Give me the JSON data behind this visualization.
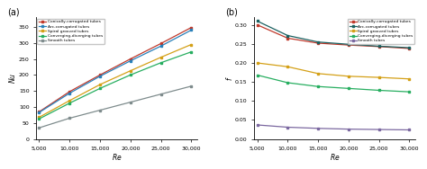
{
  "Re": [
    5000,
    10000,
    15000,
    20000,
    25000,
    30000
  ],
  "Nu": {
    "Conically-corrugated tubes": [
      85,
      148,
      200,
      250,
      298,
      348
    ],
    "Arc-corrugated tubes": [
      83,
      143,
      196,
      244,
      290,
      340
    ],
    "Spiral grooved tubes": [
      68,
      120,
      170,
      213,
      255,
      295
    ],
    "Converging-diverging tubes": [
      63,
      112,
      158,
      200,
      238,
      272
    ],
    "Smooth tubes": [
      35,
      65,
      90,
      115,
      140,
      165
    ]
  },
  "f": {
    "Conically-corrugated tubes": [
      0.3,
      0.265,
      0.252,
      0.247,
      0.243,
      0.238
    ],
    "Arc-corrugated tubes": [
      0.31,
      0.272,
      0.255,
      0.249,
      0.244,
      0.24
    ],
    "Spiral grooved tubes": [
      0.2,
      0.19,
      0.172,
      0.165,
      0.162,
      0.158
    ],
    "Converging-diverging tubes": [
      0.168,
      0.148,
      0.138,
      0.133,
      0.128,
      0.124
    ],
    "Smooth tubes": [
      0.037,
      0.031,
      0.028,
      0.026,
      0.025,
      0.024
    ]
  },
  "Nu_colors": {
    "Conically-corrugated tubes": "#c0392b",
    "Arc-corrugated tubes": "#2980b9",
    "Spiral grooved tubes": "#d4a017",
    "Converging-diverging tubes": "#27ae60",
    "Smooth tubes": "#7f8c8d"
  },
  "f_colors": {
    "Conically-corrugated tubes": "#c0392b",
    "Arc-corrugated tubes": "#1a6060",
    "Spiral grooved tubes": "#d4a017",
    "Converging-diverging tubes": "#27ae60",
    "Smooth tubes": "#7b68a0"
  },
  "Nu_ylim": [
    0,
    380
  ],
  "Nu_yticks": [
    0,
    50,
    100,
    150,
    200,
    250,
    300,
    350
  ],
  "f_ylim": [
    0.0,
    0.32
  ],
  "f_yticks": [
    0.0,
    0.05,
    0.1,
    0.15,
    0.2,
    0.25,
    0.3
  ],
  "Re_ticks": [
    5000,
    10000,
    15000,
    20000,
    25000,
    30000
  ],
  "Re_ticklabels": [
    "5,000",
    "10,000",
    "15,000",
    "20,000",
    "25,000",
    "30,000"
  ],
  "bg_color": "#ffffff",
  "panel_bg": "#f2f2f2"
}
